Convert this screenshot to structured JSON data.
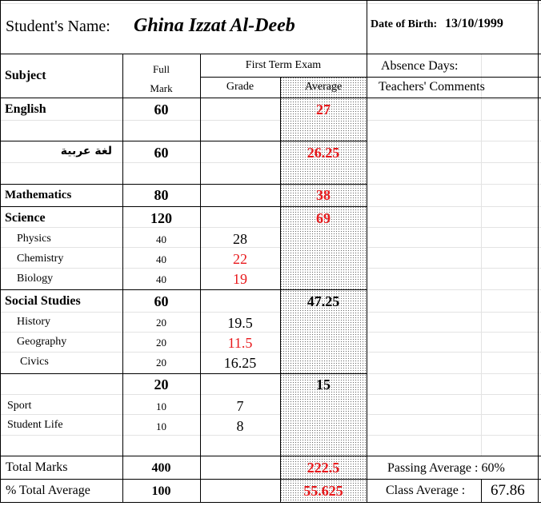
{
  "student": {
    "name_label": "Student's Name:",
    "name": "Ghina Izzat Al-Deeb",
    "dob_label": "Date of Birth:",
    "dob": "13/10/1999"
  },
  "headers": {
    "subject": "Subject",
    "full": "Full",
    "mark": "Mark",
    "first_term": "First Term Exam",
    "grade": "Grade",
    "average": "Average",
    "absence": "Absence Days:",
    "comments": "Teachers' Comments"
  },
  "rows": {
    "english": {
      "subject": "English",
      "full": "60",
      "avg": "27"
    },
    "arabic": {
      "subject": "لغة عربية",
      "full": "60",
      "avg": "26.25"
    },
    "math": {
      "subject": "Mathematics",
      "full": "80",
      "avg": "38"
    },
    "science": {
      "subject": "Science",
      "full": "120",
      "avg": "69"
    },
    "physics": {
      "subject": "Physics",
      "full": "40",
      "grade": "28"
    },
    "chemistry": {
      "subject": "Chemistry",
      "full": "40",
      "grade": "22"
    },
    "biology": {
      "subject": "Biology",
      "full": "40",
      "grade": "19"
    },
    "social": {
      "subject": "Social Studies",
      "full": "60",
      "avg": "47.25"
    },
    "history": {
      "subject": "History",
      "full": "20",
      "grade": "19.5"
    },
    "geography": {
      "subject": "Geography",
      "full": "20",
      "grade": "11.5"
    },
    "civics": {
      "subject": "Civics",
      "full": "20",
      "grade": "16.25"
    },
    "activities": {
      "full": "20",
      "avg": "15"
    },
    "sport": {
      "subject": "Sport",
      "full": "10",
      "grade": "7"
    },
    "student_life": {
      "subject": "Student Life",
      "full": "10",
      "grade": "8"
    }
  },
  "totals": {
    "total_label": "Total Marks",
    "total_full": "400",
    "total_avg": "222.5",
    "pct_label": "% Total Average",
    "pct_full": "100",
    "pct_avg": "55.625",
    "passing": "Passing Average : 60%",
    "class_avg_label": "Class Average :",
    "class_avg": "67.86"
  },
  "colors": {
    "fail": "#e8191c",
    "grid": "#e3e3e3"
  }
}
